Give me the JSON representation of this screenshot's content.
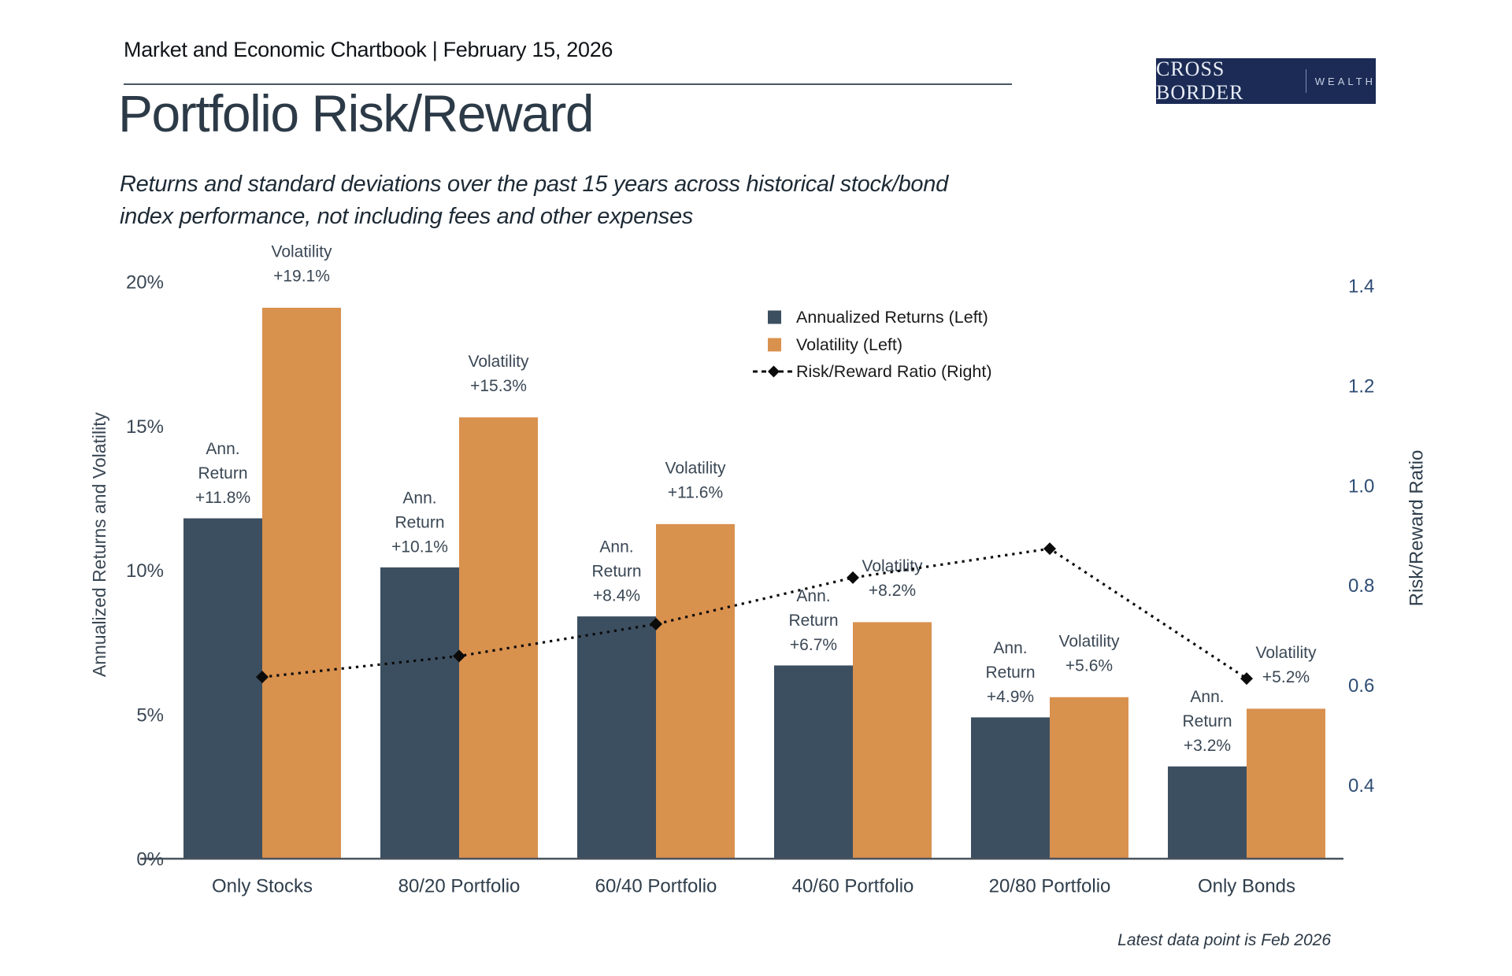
{
  "header": {
    "title": "Market and Economic Chartbook | February 15, 2026"
  },
  "logo": {
    "primary": "CROSS BORDER",
    "secondary": "WEALTH"
  },
  "page_title": "Portfolio Risk/Reward",
  "subtitle_lines": [
    "Returns and standard deviations over the past 15 years across historical stock/bond",
    "index performance, not including fees and other expenses"
  ],
  "footnote": "Latest data point is Feb 2026",
  "colors": {
    "bar_return": "#3C4F61",
    "bar_volatility": "#D9914E",
    "ratio_line": "#0b0b0b",
    "logo_bg": "#1B2B55",
    "title_text": "#2C3A47",
    "left_axis_text": "#3A4754",
    "right_axis_text": "#2E4D74"
  },
  "chart_data": {
    "type": "bar",
    "subtype": "grouped bars with dotted line overlay on secondary axis",
    "categories": [
      "Only Stocks",
      "80/20 Portfolio",
      "60/40 Portfolio",
      "40/60 Portfolio",
      "20/80 Portfolio",
      "Only Bonds"
    ],
    "series": [
      {
        "name": "Annualized Returns (Left)",
        "axis": "left",
        "type": "bar",
        "values": [
          11.8,
          10.1,
          8.4,
          6.7,
          4.9,
          3.2
        ]
      },
      {
        "name": "Volatility (Left)",
        "axis": "left",
        "type": "bar",
        "values": [
          19.1,
          15.3,
          11.6,
          8.2,
          5.6,
          5.2
        ]
      },
      {
        "name": "Risk/Reward Ratio (Right)",
        "axis": "right",
        "type": "line",
        "values": [
          0.618,
          0.66,
          0.724,
          0.817,
          0.875,
          0.615
        ]
      }
    ],
    "return_labels": [
      "+11.8%",
      "+10.1%",
      "+8.4%",
      "+6.7%",
      "+4.9%",
      "+3.2%"
    ],
    "volatility_labels": [
      "+19.1%",
      "+15.3%",
      "+11.6%",
      "+8.2%",
      "+5.6%",
      "+5.2%"
    ],
    "bar_label_prefixes": {
      "return_lines": [
        "Ann.",
        "Return"
      ],
      "volatility_line": "Volatility"
    },
    "left_axis": {
      "title": "Annualized Returns and Volatility",
      "ticks": [
        "0%",
        "5%",
        "10%",
        "15%",
        "20%"
      ],
      "range": [
        0,
        20
      ]
    },
    "right_axis": {
      "title": "Risk/Reward Ratio",
      "ticks": [
        "0.4",
        "0.6",
        "0.8",
        "1.0",
        "1.2",
        "1.4"
      ],
      "range_shown": [
        0.4,
        1.4
      ]
    },
    "gridlines": false,
    "legend_position": "upper right"
  }
}
